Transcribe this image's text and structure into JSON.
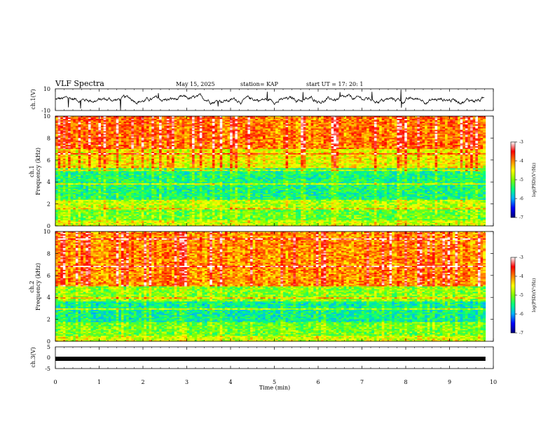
{
  "header": {
    "title": "VLF Spectra",
    "date": "May 15, 2025",
    "station": "station= KAP",
    "start": "start  UT  =   17: 20: 1"
  },
  "chart_data": [
    {
      "type": "line",
      "name": "ch1-waveform",
      "ylabel": "ch.1(V)",
      "ylim": [
        -10,
        10
      ],
      "yticks": [
        "10",
        "-10"
      ],
      "xlim": [
        0,
        10
      ],
      "data_extent_min": 9.8,
      "description_values": {
        "mean": 0,
        "typical_range": [
          -3,
          3
        ],
        "spike_min": -10,
        "spike_max": 10
      }
    },
    {
      "type": "heatmap",
      "name": "ch1-spectrogram",
      "ylabel": [
        "ch.1",
        "Frequency  (kHz)"
      ],
      "ylim": [
        0,
        10
      ],
      "yticks": [
        "0",
        "2",
        "4",
        "6",
        "8",
        "10"
      ],
      "xlim": [
        0,
        10
      ],
      "colorbar": {
        "label": "log(PSD)(V²/Hz)",
        "range": [
          -7,
          -3
        ],
        "ticks": [
          "-3",
          "-4",
          "-5",
          "-6",
          "-7"
        ]
      },
      "bands_khz": [
        {
          "from": 0,
          "to": 0.5,
          "level": -4.6
        },
        {
          "from": 0.5,
          "to": 1.6,
          "level": -5.0
        },
        {
          "from": 1.6,
          "to": 2.4,
          "level": -4.7
        },
        {
          "from": 2.4,
          "to": 5.2,
          "level": -5.4
        },
        {
          "from": 5.2,
          "to": 7.0,
          "level": -4.4
        },
        {
          "from": 7.0,
          "to": 10.0,
          "level": -3.8
        }
      ]
    },
    {
      "type": "heatmap",
      "name": "ch2-spectrogram",
      "ylabel": [
        "ch.2",
        "Frequency  (kHz)"
      ],
      "ylim": [
        0,
        10
      ],
      "yticks": [
        "0",
        "2",
        "4",
        "6",
        "8",
        "10"
      ],
      "xlim": [
        0,
        10
      ],
      "colorbar": {
        "label": "log(PSD)(V²/Hz)",
        "range": [
          -7,
          -3
        ],
        "ticks": [
          "-3",
          "-4",
          "-5",
          "-6",
          "-7"
        ]
      },
      "bands_khz": [
        {
          "from": 0,
          "to": 0.5,
          "level": -4.6
        },
        {
          "from": 0.5,
          "to": 1.8,
          "level": -5.0
        },
        {
          "from": 1.8,
          "to": 3.6,
          "level": -5.5
        },
        {
          "from": 3.6,
          "to": 5.0,
          "level": -4.9
        },
        {
          "from": 5.0,
          "to": 10.0,
          "level": -3.9
        }
      ]
    },
    {
      "type": "line",
      "name": "ch3-waveform",
      "ylabel": "ch.3(V)",
      "ylim": [
        -5,
        5
      ],
      "yticks": [
        "5",
        "0",
        "-5"
      ],
      "xlim": [
        0,
        10
      ],
      "constant_value": -0.5
    }
  ],
  "xaxis": {
    "label": "Time  (min)",
    "ticks": [
      "0",
      "1",
      "2",
      "3",
      "4",
      "5",
      "6",
      "7",
      "8",
      "9",
      "10"
    ]
  },
  "colors": {
    "colormap": [
      "#00007a",
      "#0000ff",
      "#00b0ff",
      "#00ff80",
      "#80ff00",
      "#ffff00",
      "#ff8000",
      "#ff0000",
      "#ffffff"
    ]
  }
}
